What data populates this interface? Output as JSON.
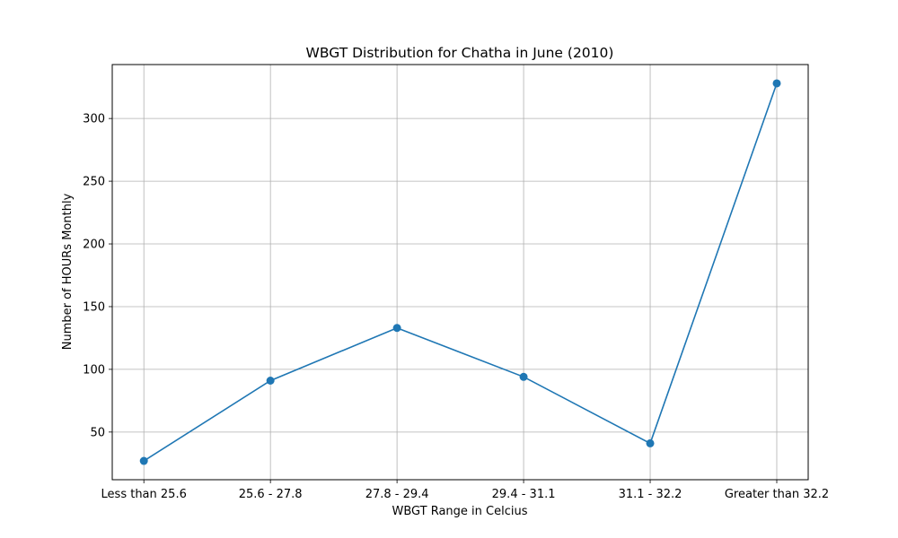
{
  "chart_data": {
    "type": "line",
    "title": "WBGT Distribution for Chatha in June (2010)",
    "xlabel": "WBGT Range in Celcius",
    "ylabel": "Number of HOURs Monthly",
    "categories": [
      "Less than 25.6",
      "25.6 - 27.8",
      "27.8 - 29.4",
      "29.4 - 31.1",
      "31.1 - 32.2",
      "Greater than 32.2"
    ],
    "series": [
      {
        "values": [
          27,
          91,
          133,
          94,
          41,
          328
        ]
      }
    ],
    "yticks": [
      50,
      100,
      150,
      200,
      250,
      300
    ],
    "ylim": [
      12,
      343
    ],
    "grid": true,
    "marker": "circle",
    "colors": {
      "line": "#1f77b4",
      "grid": "#b0b0b0",
      "axis": "#000000"
    }
  }
}
